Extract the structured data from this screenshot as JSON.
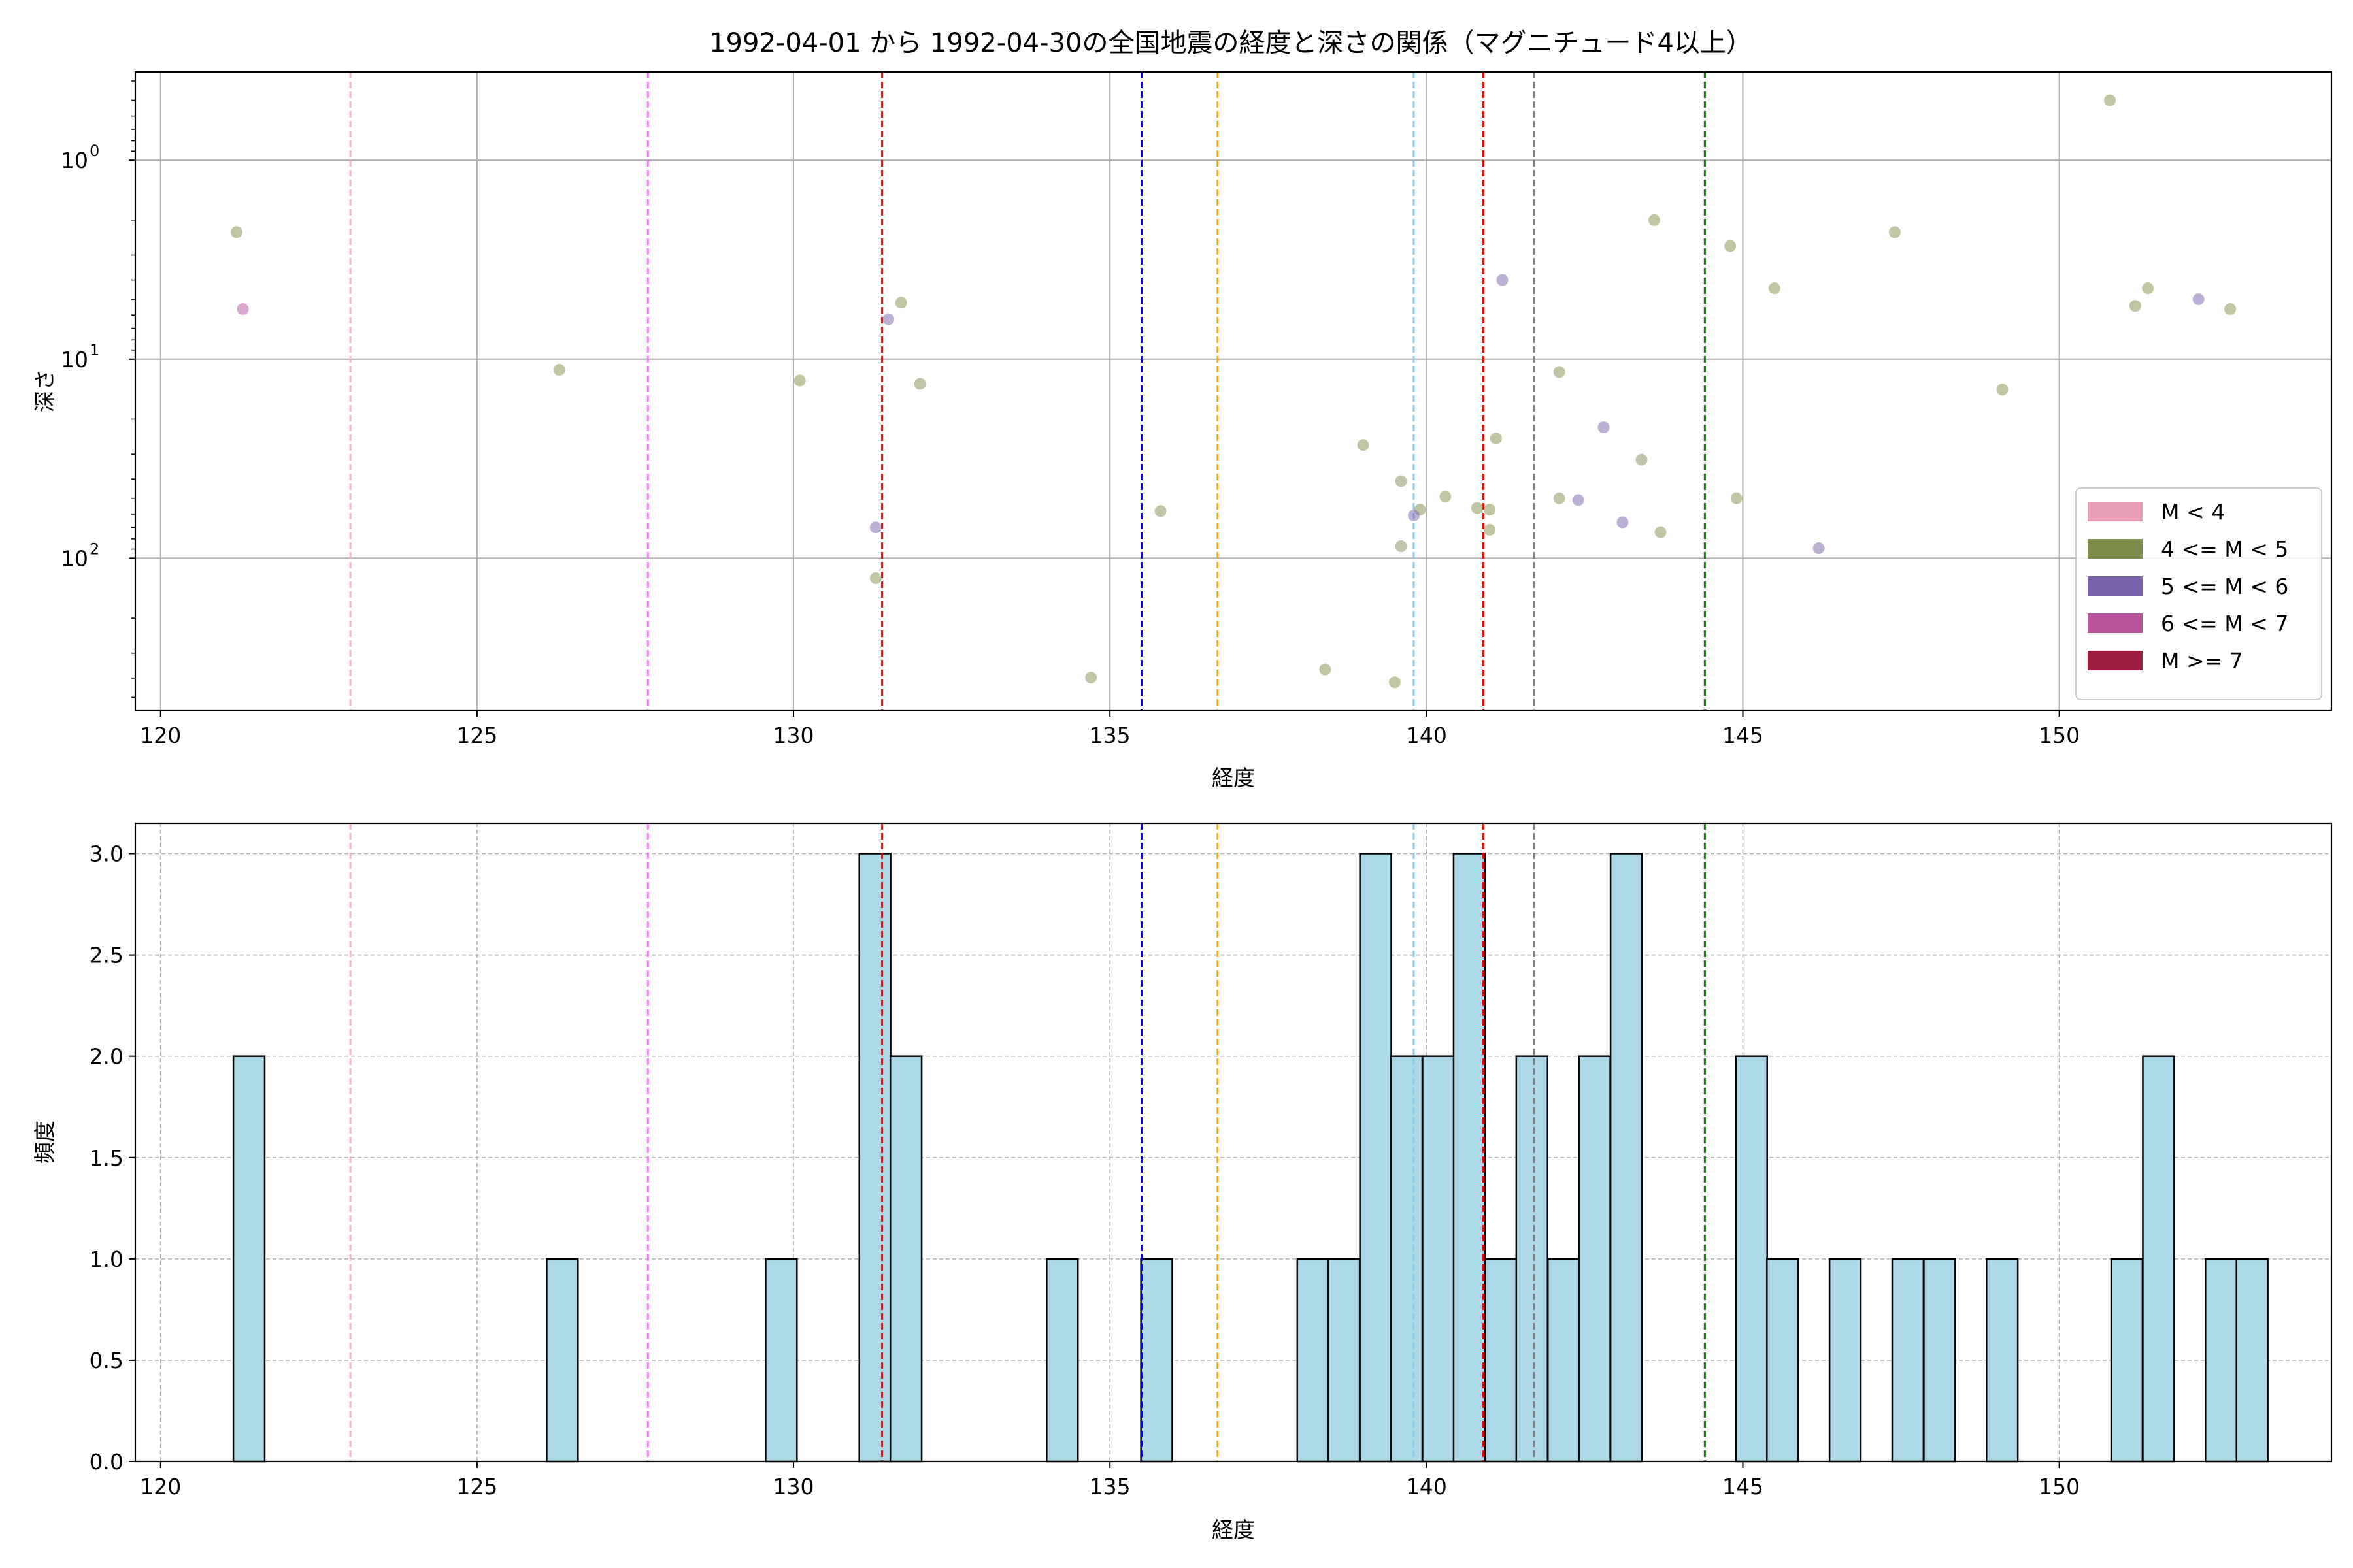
{
  "colors": {
    "scatter_magnitude": {
      "M<4": "#e79db6",
      "4<=M<5": "#7e8e4a",
      "5<=M<6": "#7a62aa",
      "6<=M<7": "#b8529b",
      "M>=7": "#9c1d3f"
    },
    "hist_bar": "#add8e6",
    "grid": "#b0b0b0"
  },
  "vlines": [
    {
      "x": 123.0,
      "color": "#ffb6c1"
    },
    {
      "x": 127.7,
      "color": "#ee82ee"
    },
    {
      "x": 131.4,
      "color": "#b22222"
    },
    {
      "x": 135.5,
      "color": "#0000ff"
    },
    {
      "x": 136.7,
      "color": "#ffa500"
    },
    {
      "x": 139.8,
      "color": "#87ceeb"
    },
    {
      "x": 140.9,
      "color": "#ff0000"
    },
    {
      "x": 141.7,
      "color": "#808080"
    },
    {
      "x": 144.4,
      "color": "#008000"
    }
  ],
  "chart_data": [
    {
      "type": "scatter",
      "title": "1992-04-01 から 1992-04-30の全国地震の経度と深さの関係（マグニチュード4以上）",
      "xlabel": "経度",
      "ylabel": "深さ",
      "xlim": [
        119.6,
        154.3
      ],
      "ylim": [
        580,
        0.36
      ],
      "yscale": "log",
      "y_inverted": true,
      "grid": true,
      "xticks": [
        "120",
        "125",
        "130",
        "135",
        "140",
        "145",
        "150"
      ],
      "yticks": [
        {
          "value": 1,
          "base": "10",
          "exp": "0"
        },
        {
          "value": 10,
          "base": "10",
          "exp": "1"
        },
        {
          "value": 100,
          "base": "10",
          "exp": "2"
        }
      ],
      "legend": {
        "placement": "lower-right",
        "entries": [
          {
            "label": "M < 4",
            "color": "#e79db6"
          },
          {
            "label": "4 <= M < 5",
            "color": "#7e8e4a"
          },
          {
            "label": "5 <= M < 6",
            "color": "#7a62aa"
          },
          {
            "label": "6 <= M < 7",
            "color": "#b8529b"
          },
          {
            "label": "M >= 7",
            "color": "#9c1d3f"
          }
        ]
      },
      "series": [
        {
          "name": "4 <= M < 5",
          "points": [
            [
              121.2,
              2.3
            ],
            [
              126.3,
              11.3
            ],
            [
              130.1,
              12.8
            ],
            [
              131.7,
              5.2
            ],
            [
              132.0,
              13.3
            ],
            [
              131.3,
              126
            ],
            [
              134.7,
              398
            ],
            [
              135.8,
              58
            ],
            [
              138.4,
              362
            ],
            [
              139.0,
              27
            ],
            [
              139.6,
              41
            ],
            [
              139.6,
              87
            ],
            [
              139.9,
              57
            ],
            [
              139.5,
              420
            ],
            [
              140.3,
              49
            ],
            [
              140.8,
              56
            ],
            [
              141.0,
              57
            ],
            [
              141.1,
              25
            ],
            [
              141.0,
              72
            ],
            [
              142.1,
              11.6
            ],
            [
              142.1,
              50
            ],
            [
              143.4,
              32
            ],
            [
              143.6,
              2.0
            ],
            [
              143.7,
              74
            ],
            [
              144.8,
              2.7
            ],
            [
              144.9,
              50
            ],
            [
              145.5,
              4.4
            ],
            [
              147.4,
              2.3
            ],
            [
              149.1,
              14.2
            ],
            [
              150.8,
              0.5
            ],
            [
              151.2,
              5.4
            ],
            [
              151.4,
              4.4
            ],
            [
              152.7,
              5.6
            ]
          ]
        },
        {
          "name": "5 <= M < 6",
          "points": [
            [
              131.3,
              70
            ],
            [
              131.5,
              6.3
            ],
            [
              139.8,
              61
            ],
            [
              141.2,
              4.0
            ],
            [
              142.4,
              51
            ],
            [
              142.8,
              22
            ],
            [
              143.1,
              66
            ],
            [
              146.2,
              89
            ],
            [
              152.2,
              5.0
            ]
          ]
        },
        {
          "name": "6 <= M < 7",
          "points": [
            [
              121.3,
              5.6
            ]
          ]
        }
      ]
    },
    {
      "type": "bar",
      "xlabel": "経度",
      "ylabel": "頻度",
      "xlim": [
        119.6,
        154.3
      ],
      "ylim": [
        0,
        3.15
      ],
      "grid": true,
      "xticks": [
        "120",
        "125",
        "130",
        "135",
        "140",
        "145",
        "150"
      ],
      "yticks": [
        "0.0",
        "0.5",
        "1.0",
        "1.5",
        "2.0",
        "2.5",
        "3.0"
      ],
      "bin_width": 0.4945,
      "bins": [
        {
          "left": 121.15,
          "count": 2
        },
        {
          "left": 126.1,
          "count": 1
        },
        {
          "left": 129.56,
          "count": 1
        },
        {
          "left": 131.04,
          "count": 3
        },
        {
          "left": 131.53,
          "count": 2
        },
        {
          "left": 134.0,
          "count": 1
        },
        {
          "left": 135.49,
          "count": 1
        },
        {
          "left": 137.96,
          "count": 1
        },
        {
          "left": 138.45,
          "count": 1
        },
        {
          "left": 138.95,
          "count": 3
        },
        {
          "left": 139.44,
          "count": 2
        },
        {
          "left": 139.94,
          "count": 2
        },
        {
          "left": 140.43,
          "count": 3
        },
        {
          "left": 140.93,
          "count": 1
        },
        {
          "left": 141.42,
          "count": 2
        },
        {
          "left": 141.92,
          "count": 1
        },
        {
          "left": 142.41,
          "count": 2
        },
        {
          "left": 142.91,
          "count": 3
        },
        {
          "left": 144.89,
          "count": 2
        },
        {
          "left": 145.38,
          "count": 1
        },
        {
          "left": 146.37,
          "count": 1
        },
        {
          "left": 147.36,
          "count": 1
        },
        {
          "left": 147.86,
          "count": 1
        },
        {
          "left": 148.85,
          "count": 1
        },
        {
          "left": 150.82,
          "count": 1
        },
        {
          "left": 151.32,
          "count": 2
        },
        {
          "left": 152.31,
          "count": 1
        },
        {
          "left": 152.8,
          "count": 1
        }
      ]
    }
  ]
}
